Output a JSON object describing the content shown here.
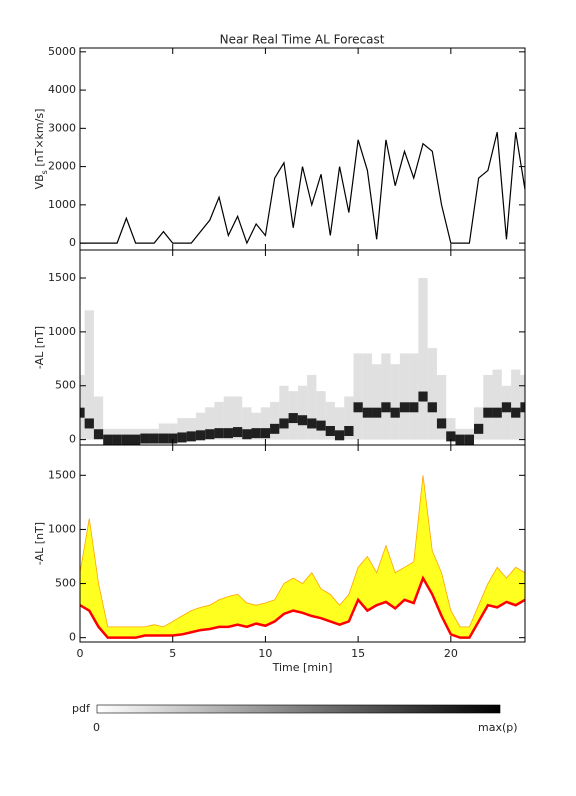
{
  "chart_data": [
    {
      "type": "line",
      "title": "Near Real Time AL Forecast",
      "ylabel": {
        "main": "VB",
        "sub": "s",
        "unit": " [nT×km/s]"
      },
      "x": [
        0,
        0.5,
        1,
        1.5,
        2,
        2.5,
        3,
        3.5,
        4,
        4.5,
        5,
        5.5,
        6,
        6.5,
        7,
        7.5,
        8,
        8.5,
        9,
        9.5,
        10,
        10.5,
        11,
        11.5,
        12,
        12.5,
        13,
        13.5,
        14,
        14.5,
        15,
        15.5,
        16,
        16.5,
        17,
        17.5,
        18,
        18.5,
        19,
        19.5,
        20,
        20.5,
        21,
        21.5,
        22,
        22.5,
        23,
        23.5,
        24
      ],
      "series": [
        {
          "color": "#000000",
          "values": [
            0,
            0,
            0,
            0,
            0,
            650,
            0,
            0,
            0,
            300,
            0,
            0,
            0,
            300,
            600,
            1200,
            200,
            700,
            0,
            500,
            200,
            1700,
            2100,
            400,
            2000,
            1000,
            1800,
            200,
            2000,
            800,
            2700,
            1900,
            100,
            2700,
            1500,
            2400,
            1700,
            2600,
            2400,
            1000,
            0,
            0,
            0,
            1700,
            1900,
            2900,
            100,
            2900,
            1400
          ]
        }
      ],
      "xlim": [
        0,
        24
      ],
      "xticks": [
        0,
        5,
        10,
        15,
        20
      ],
      "ylim": [
        -180,
        5100
      ],
      "yticks": [
        0,
        1000,
        2000,
        3000,
        4000,
        5000
      ]
    },
    {
      "type": "heatmap",
      "ylabel": "-AL [nT]",
      "x": [
        0,
        0.5,
        1,
        1.5,
        2,
        2.5,
        3,
        3.5,
        4,
        4.5,
        5,
        5.5,
        6,
        6.5,
        7,
        7.5,
        8,
        8.5,
        9,
        9.5,
        10,
        10.5,
        11,
        11.5,
        12,
        12.5,
        13,
        13.5,
        14,
        14.5,
        15,
        15.5,
        16,
        16.5,
        17,
        17.5,
        18,
        18.5,
        19,
        19.5,
        20,
        20.5,
        21,
        21.5,
        22,
        22.5,
        23,
        23.5,
        24
      ],
      "series": [
        {
          "color": "#d8d8d8",
          "values": [
            600,
            1200,
            400,
            100,
            100,
            100,
            100,
            100,
            100,
            150,
            150,
            200,
            200,
            250,
            300,
            350,
            400,
            400,
            300,
            250,
            300,
            350,
            500,
            450,
            500,
            600,
            450,
            350,
            300,
            400,
            800,
            800,
            700,
            800,
            700,
            800,
            800,
            1500,
            850,
            600,
            200,
            100,
            100,
            300,
            600,
            650,
            500,
            650,
            600
          ]
        },
        {
          "color": "#202020",
          "values": [
            250,
            150,
            50,
            0,
            0,
            0,
            0,
            10,
            10,
            10,
            10,
            20,
            30,
            40,
            50,
            60,
            60,
            70,
            50,
            60,
            60,
            100,
            150,
            200,
            180,
            150,
            130,
            80,
            40,
            80,
            300,
            250,
            250,
            300,
            250,
            300,
            300,
            400,
            300,
            150,
            30,
            0,
            0,
            100,
            250,
            250,
            300,
            250,
            300
          ]
        }
      ],
      "xlim": [
        0,
        24
      ],
      "xticks": [
        0,
        5,
        10,
        15,
        20
      ],
      "ylim": [
        -50,
        1760
      ],
      "yticks": [
        0,
        500,
        1000,
        1500
      ]
    },
    {
      "type": "band",
      "ylabel": "-AL [nT]",
      "xlabel": "Time [min]",
      "x": [
        0,
        0.5,
        1,
        1.5,
        2,
        2.5,
        3,
        3.5,
        4,
        4.5,
        5,
        5.5,
        6,
        6.5,
        7,
        7.5,
        8,
        8.5,
        9,
        9.5,
        10,
        10.5,
        11,
        11.5,
        12,
        12.5,
        13,
        13.5,
        14,
        14.5,
        15,
        15.5,
        16,
        16.5,
        17,
        17.5,
        18,
        18.5,
        19,
        19.5,
        20,
        20.5,
        21,
        21.5,
        22,
        22.5,
        23,
        23.5,
        24
      ],
      "series": [
        {
          "color": "#ff0000",
          "values": [
            300,
            250,
            100,
            0,
            0,
            0,
            0,
            20,
            20,
            20,
            20,
            30,
            50,
            70,
            80,
            100,
            100,
            120,
            100,
            130,
            110,
            150,
            220,
            250,
            230,
            200,
            180,
            150,
            120,
            150,
            350,
            250,
            300,
            330,
            270,
            350,
            320,
            550,
            400,
            200,
            30,
            0,
            0,
            150,
            300,
            280,
            330,
            300,
            350
          ]
        },
        {
          "color": "#ffff20",
          "values": [
            600,
            1100,
            500,
            100,
            100,
            100,
            100,
            100,
            120,
            100,
            150,
            200,
            250,
            280,
            300,
            350,
            380,
            400,
            320,
            300,
            320,
            350,
            500,
            550,
            500,
            600,
            450,
            400,
            300,
            400,
            650,
            750,
            600,
            850,
            600,
            650,
            700,
            1500,
            800,
            600,
            250,
            100,
            100,
            300,
            500,
            650,
            550,
            650,
            600
          ]
        }
      ],
      "xlim": [
        0,
        24
      ],
      "xticks": [
        0,
        5,
        10,
        15,
        20
      ],
      "ylim": [
        -40,
        1780
      ],
      "yticks": [
        0,
        500,
        1000,
        1500
      ]
    }
  ],
  "colorbar": {
    "title": "pdf",
    "min_label": "0",
    "max_label": "max(p)"
  }
}
